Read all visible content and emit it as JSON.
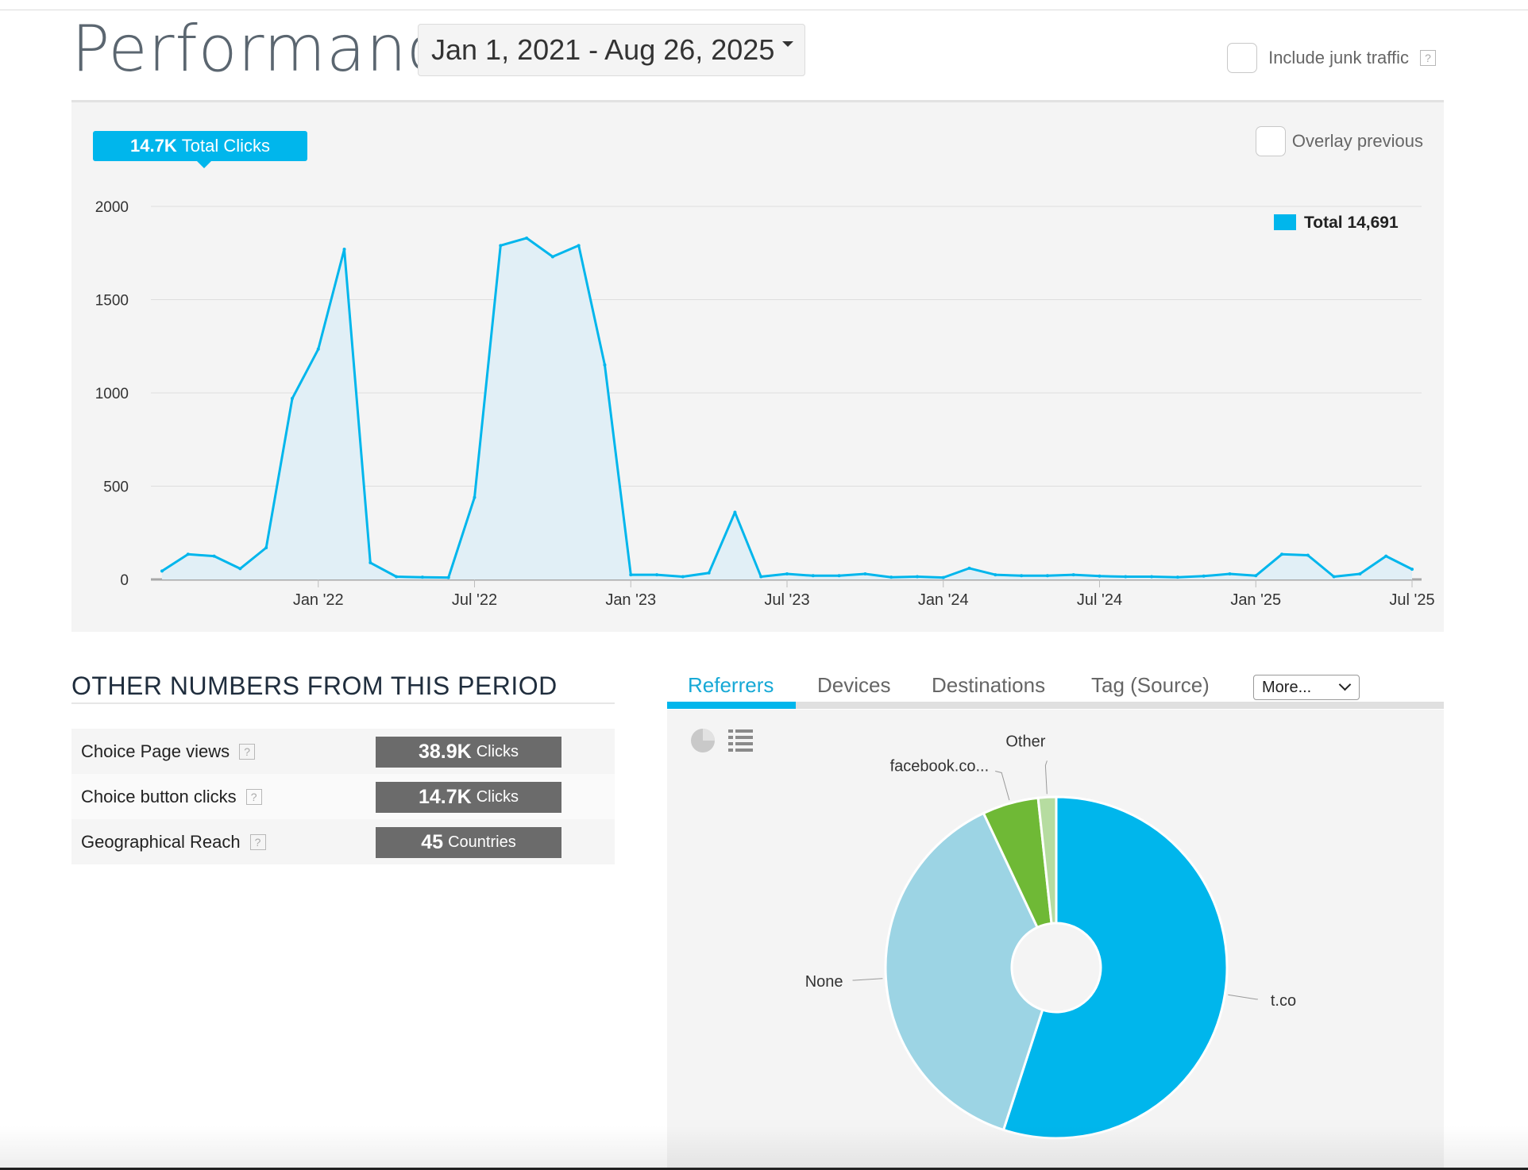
{
  "header": {
    "title": "Performance",
    "date_range": "Jan 1, 2021 - Aug 26, 2025",
    "junk_label": "Include junk traffic",
    "help_glyph": "?"
  },
  "summary": {
    "total_value": "14.7K",
    "total_label": "Total Clicks",
    "overlay_label": "Overlay previous"
  },
  "chart_data": {
    "type": "area",
    "title": "",
    "xlabel": "",
    "ylabel": "",
    "ylim": [
      0,
      2000
    ],
    "y_ticks": [
      0,
      500,
      1000,
      1500,
      2000
    ],
    "x_ticks": [
      {
        "label": "Jan '22",
        "at": "2022-01"
      },
      {
        "label": "Jul '22",
        "at": "2022-07"
      },
      {
        "label": "Jan '23",
        "at": "2023-01"
      },
      {
        "label": "Jul '23",
        "at": "2023-07"
      },
      {
        "label": "Jan '24",
        "at": "2024-01"
      },
      {
        "label": "Jul '24",
        "at": "2024-07"
      },
      {
        "label": "Jan '25",
        "at": "2025-01"
      },
      {
        "label": "Jul '25",
        "at": "2025-07"
      }
    ],
    "grid": true,
    "legend_position": "top-right",
    "series": [
      {
        "name": "Total",
        "legend_text": "Total 14,691",
        "color": "#00b6ec",
        "fill": "#e1eff6",
        "points": [
          [
            "2021-07",
            45
          ],
          [
            "2021-08",
            135
          ],
          [
            "2021-09",
            125
          ],
          [
            "2021-10",
            58
          ],
          [
            "2021-11",
            170
          ],
          [
            "2021-12",
            970
          ],
          [
            "2022-01",
            1235
          ],
          [
            "2022-02",
            1770
          ],
          [
            "2022-03",
            90
          ],
          [
            "2022-04",
            15
          ],
          [
            "2022-05",
            12
          ],
          [
            "2022-06",
            10
          ],
          [
            "2022-07",
            440
          ],
          [
            "2022-08",
            1790
          ],
          [
            "2022-09",
            1830
          ],
          [
            "2022-10",
            1730
          ],
          [
            "2022-11",
            1790
          ],
          [
            "2022-12",
            1150
          ],
          [
            "2023-01",
            25
          ],
          [
            "2023-02",
            25
          ],
          [
            "2023-03",
            15
          ],
          [
            "2023-04",
            35
          ],
          [
            "2023-05",
            360
          ],
          [
            "2023-06",
            15
          ],
          [
            "2023-07",
            30
          ],
          [
            "2023-08",
            20
          ],
          [
            "2023-09",
            20
          ],
          [
            "2023-10",
            30
          ],
          [
            "2023-11",
            12
          ],
          [
            "2023-12",
            15
          ],
          [
            "2024-01",
            10
          ],
          [
            "2024-02",
            60
          ],
          [
            "2024-03",
            25
          ],
          [
            "2024-04",
            20
          ],
          [
            "2024-05",
            20
          ],
          [
            "2024-06",
            25
          ],
          [
            "2024-07",
            18
          ],
          [
            "2024-08",
            15
          ],
          [
            "2024-09",
            15
          ],
          [
            "2024-10",
            12
          ],
          [
            "2024-11",
            18
          ],
          [
            "2024-12",
            30
          ],
          [
            "2025-01",
            20
          ],
          [
            "2025-02",
            135
          ],
          [
            "2025-03",
            130
          ],
          [
            "2025-04",
            15
          ],
          [
            "2025-05",
            30
          ],
          [
            "2025-06",
            125
          ],
          [
            "2025-07",
            55
          ]
        ]
      }
    ]
  },
  "other_numbers": {
    "title": "OTHER NUMBERS FROM THIS PERIOD",
    "rows": [
      {
        "label": "Choice Page views",
        "value": "38.9K",
        "unit": "Clicks"
      },
      {
        "label": "Choice button clicks",
        "value": "14.7K",
        "unit": "Clicks"
      },
      {
        "label": "Geographical Reach",
        "value": "45",
        "unit": "Countries"
      }
    ]
  },
  "referrers": {
    "tabs": [
      "Referrers",
      "Devices",
      "Destinations",
      "Tag (Source)"
    ],
    "active_tab": 0,
    "more_label": "More...",
    "icons": [
      "pie-chart-icon",
      "list-icon"
    ],
    "pie": {
      "type": "pie",
      "slices": [
        {
          "label": "t.co",
          "value": 55.0,
          "color": "#00b6ec"
        },
        {
          "label": "None",
          "value": 38.0,
          "color": "#9cd4e4"
        },
        {
          "label": "facebook.co...",
          "value": 5.3,
          "color": "#6fb936"
        },
        {
          "label": "Other",
          "value": 1.7,
          "color": "#b6dca0"
        }
      ]
    }
  }
}
